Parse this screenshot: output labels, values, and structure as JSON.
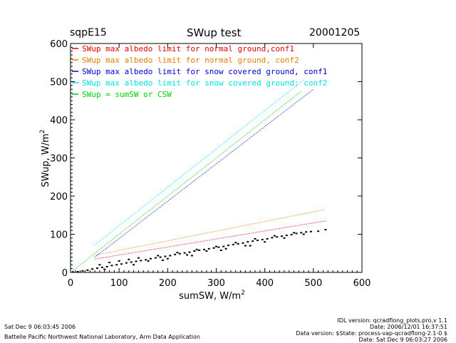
{
  "header": {
    "site": "sqpE15",
    "title": "SWup test",
    "date": "20001205"
  },
  "footer": {
    "left_line1": "Sat Dec  9 06:03:45 2006",
    "left_line2": "Battelle Pacific Northwest National Laboratory, Arm Data Application",
    "right_lines": [
      "IDL version: qcradflong_plots.pro,v 1.1",
      "Date: 2006/12/01 16:37:51",
      "Data version: $State: process-vap-qcradflong-2.1-0 $",
      "Date: Sat Dec  9 06:03:27 2006"
    ]
  },
  "colors": {
    "red": "#e00000",
    "orange": "#e08000",
    "blue": "#0000d0",
    "cyan": "#00e0e0",
    "green": "#00d000",
    "black": "#000000"
  },
  "chart_data": {
    "type": "scatter",
    "title": "SWup test",
    "xlabel": "sumSW, W/m",
    "xlabel_sup": "2",
    "ylabel": "SWup, W/m",
    "ylabel_sup": "2",
    "xlim": [
      0,
      600
    ],
    "ylim": [
      0,
      600
    ],
    "xticks": [
      0,
      100,
      200,
      300,
      400,
      500,
      600
    ],
    "yticks": [
      0,
      100,
      200,
      300,
      400,
      500,
      600
    ],
    "grid": false,
    "legend_position": "top-left",
    "series": [
      {
        "name": "SWup max albedo limit for normal ground,conf1",
        "color": "#e00000",
        "style": "dotted",
        "points": [
          [
            50,
            35
          ],
          [
            525,
            135
          ]
        ]
      },
      {
        "name": "SWup max albedo limit for normal ground, conf2",
        "color": "#e08000",
        "style": "dotted",
        "points": [
          [
            50,
            45
          ],
          [
            525,
            165
          ]
        ]
      },
      {
        "name": "SWup max albedo limit for snow covered ground, conf1",
        "color": "#0000d0",
        "style": "dotted",
        "points": [
          [
            50,
            40
          ],
          [
            500,
            480
          ]
        ]
      },
      {
        "name": "SWup max albedo limit for snow covered ground; conf2",
        "color": "#00e0e0",
        "style": "dotted",
        "points": [
          [
            50,
            72
          ],
          [
            480,
            505
          ]
        ]
      },
      {
        "name": "SWup = sumSW or CSW",
        "color": "#00d000",
        "style": "dotted",
        "points": [
          [
            0,
            0
          ],
          [
            475,
            475
          ]
        ]
      },
      {
        "name": "",
        "color": "#000000",
        "style": "points",
        "points": [
          [
            5,
            1
          ],
          [
            15,
            2
          ],
          [
            25,
            4
          ],
          [
            35,
            6
          ],
          [
            45,
            9
          ],
          [
            55,
            11
          ],
          [
            65,
            13
          ],
          [
            75,
            15
          ],
          [
            85,
            18
          ],
          [
            95,
            20
          ],
          [
            105,
            22
          ],
          [
            115,
            25
          ],
          [
            125,
            27
          ],
          [
            135,
            29
          ],
          [
            145,
            31
          ],
          [
            155,
            33
          ],
          [
            165,
            36
          ],
          [
            175,
            38
          ],
          [
            185,
            40
          ],
          [
            195,
            42
          ],
          [
            205,
            44
          ],
          [
            215,
            47
          ],
          [
            225,
            49
          ],
          [
            235,
            51
          ],
          [
            245,
            53
          ],
          [
            255,
            56
          ],
          [
            265,
            58
          ],
          [
            275,
            60
          ],
          [
            285,
            62
          ],
          [
            295,
            64
          ],
          [
            305,
            66
          ],
          [
            315,
            68
          ],
          [
            325,
            71
          ],
          [
            335,
            73
          ],
          [
            345,
            75
          ],
          [
            355,
            77
          ],
          [
            365,
            80
          ],
          [
            375,
            82
          ],
          [
            385,
            84
          ],
          [
            395,
            86
          ],
          [
            405,
            88
          ],
          [
            415,
            91
          ],
          [
            425,
            93
          ],
          [
            435,
            95
          ],
          [
            445,
            97
          ],
          [
            455,
            99
          ],
          [
            465,
            102
          ],
          [
            475,
            104
          ],
          [
            485,
            106
          ],
          [
            495,
            107
          ],
          [
            510,
            108
          ],
          [
            525,
            112
          ],
          [
            60,
            20
          ],
          [
            80,
            26
          ],
          [
            100,
            30
          ],
          [
            120,
            34
          ],
          [
            140,
            38
          ],
          [
            160,
            30
          ],
          [
            180,
            44
          ],
          [
            200,
            36
          ],
          [
            220,
            52
          ],
          [
            240,
            46
          ],
          [
            260,
            60
          ],
          [
            280,
            56
          ],
          [
            300,
            68
          ],
          [
            320,
            62
          ],
          [
            340,
            78
          ],
          [
            360,
            70
          ],
          [
            380,
            88
          ],
          [
            400,
            80
          ],
          [
            420,
            96
          ],
          [
            440,
            90
          ],
          [
            460,
            104
          ],
          [
            480,
            100
          ],
          [
            70,
            8
          ],
          [
            130,
            20
          ],
          [
            190,
            32
          ],
          [
            250,
            44
          ],
          [
            310,
            58
          ],
          [
            370,
            70
          ]
        ]
      }
    ]
  }
}
